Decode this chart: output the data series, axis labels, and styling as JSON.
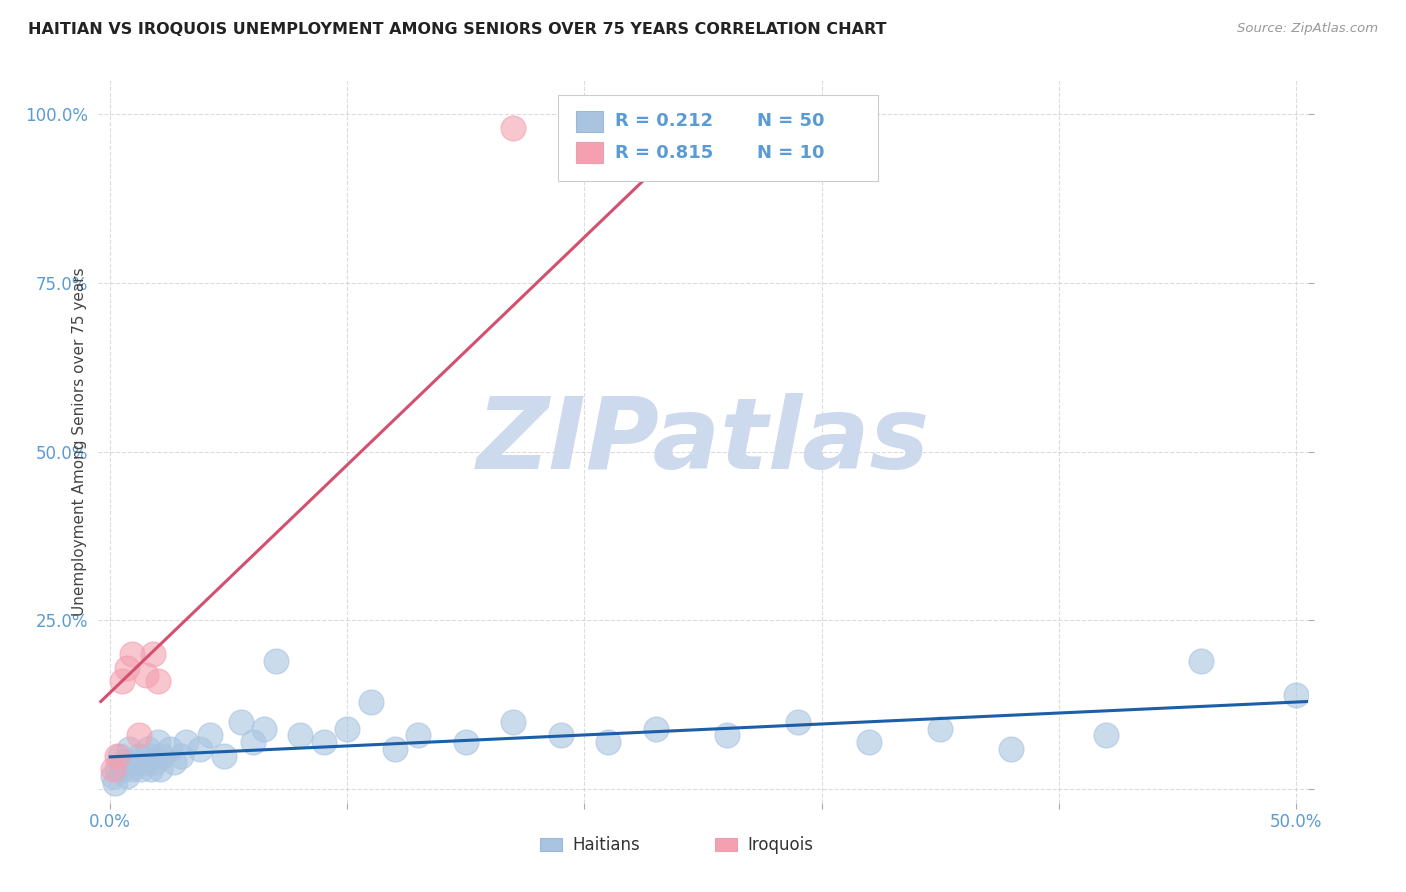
{
  "title": "HAITIAN VS IROQUOIS UNEMPLOYMENT AMONG SENIORS OVER 75 YEARS CORRELATION CHART",
  "source": "Source: ZipAtlas.com",
  "ylabel": "Unemployment Among Seniors over 75 years",
  "xlim": [
    -0.005,
    0.505
  ],
  "ylim": [
    -0.02,
    1.05
  ],
  "xticks": [
    0.0,
    0.1,
    0.2,
    0.3,
    0.4,
    0.5
  ],
  "xtick_labels": [
    "0.0%",
    "",
    "",
    "",
    "",
    "50.0%"
  ],
  "yticks": [
    0.0,
    0.25,
    0.5,
    0.75,
    1.0
  ],
  "ytick_labels": [
    "",
    "25.0%",
    "50.0%",
    "75.0%",
    "100.0%"
  ],
  "legend_r_haitian": "0.212",
  "legend_n_haitian": "50",
  "legend_r_iroquois": "0.815",
  "legend_n_iroquois": "10",
  "haitian_color": "#a8c4e0",
  "iroquois_color": "#f4a0b0",
  "haitian_line_color": "#1a5fa8",
  "iroquois_line_color": "#d45070",
  "watermark_zip": "ZIP",
  "watermark_atlas": "atlas",
  "watermark_color_zip": "#cdd9ed",
  "watermark_color_atlas": "#c8d8c8",
  "haitian_x": [
    0.001,
    0.002,
    0.003,
    0.004,
    0.005,
    0.006,
    0.007,
    0.008,
    0.009,
    0.01,
    0.012,
    0.013,
    0.015,
    0.016,
    0.017,
    0.018,
    0.019,
    0.02,
    0.021,
    0.022,
    0.025,
    0.027,
    0.03,
    0.032,
    0.038,
    0.042,
    0.048,
    0.055,
    0.06,
    0.065,
    0.07,
    0.08,
    0.09,
    0.1,
    0.11,
    0.12,
    0.13,
    0.15,
    0.17,
    0.19,
    0.21,
    0.23,
    0.26,
    0.29,
    0.32,
    0.35,
    0.38,
    0.42,
    0.46,
    0.5
  ],
  "haitian_y": [
    0.02,
    0.01,
    0.03,
    0.05,
    0.03,
    0.04,
    0.02,
    0.06,
    0.03,
    0.04,
    0.05,
    0.03,
    0.04,
    0.06,
    0.03,
    0.05,
    0.04,
    0.07,
    0.03,
    0.05,
    0.06,
    0.04,
    0.05,
    0.07,
    0.06,
    0.08,
    0.05,
    0.1,
    0.07,
    0.09,
    0.19,
    0.08,
    0.07,
    0.09,
    0.13,
    0.06,
    0.08,
    0.07,
    0.1,
    0.08,
    0.07,
    0.09,
    0.08,
    0.1,
    0.07,
    0.09,
    0.06,
    0.08,
    0.19,
    0.14
  ],
  "iroquois_x": [
    0.001,
    0.003,
    0.005,
    0.007,
    0.009,
    0.012,
    0.015,
    0.018,
    0.02,
    0.17
  ],
  "iroquois_y": [
    0.03,
    0.05,
    0.16,
    0.18,
    0.2,
    0.08,
    0.17,
    0.2,
    0.16,
    0.98
  ],
  "haitian_marker_size": 320,
  "iroquois_marker_size": 320
}
